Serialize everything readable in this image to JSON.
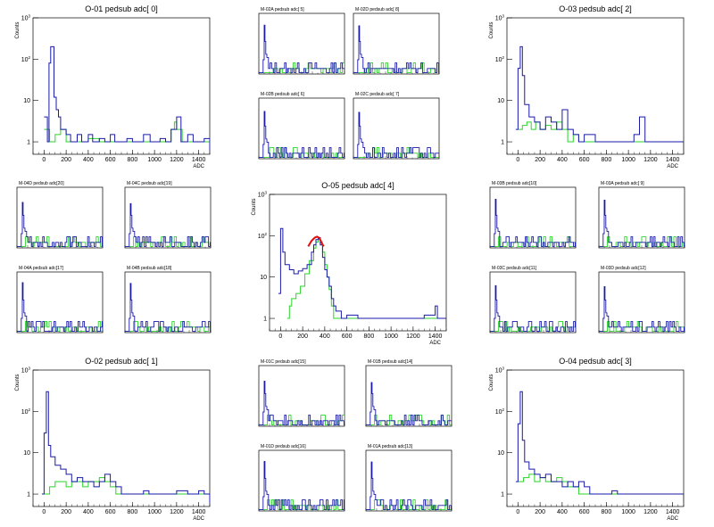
{
  "colors": {
    "blue": "#1a1aa8",
    "green": "#2ad42a",
    "red": "#e01010",
    "frame": "#000000"
  },
  "axis": {
    "xticks": [
      "0",
      "200",
      "400",
      "600",
      "800",
      "1000",
      "1200",
      "1400"
    ],
    "yticks": [
      "1",
      "10",
      "10",
      "10"
    ],
    "ysup": [
      "",
      "",
      "2",
      "3"
    ],
    "xlabel": "ADC",
    "ylabel": "Counts"
  },
  "big_panels": [
    {
      "title": "O-01    pedsub adc[ 0]",
      "blue": [
        [
          0,
          4
        ],
        [
          30,
          1
        ],
        [
          45,
          80
        ],
        [
          60,
          200
        ],
        [
          90,
          12
        ],
        [
          110,
          6
        ],
        [
          130,
          4
        ],
        [
          150,
          2
        ],
        [
          200,
          1.5
        ],
        [
          240,
          1
        ],
        [
          300,
          1.5
        ],
        [
          340,
          1
        ],
        [
          400,
          1.5
        ],
        [
          440,
          1
        ],
        [
          500,
          1.2
        ],
        [
          550,
          1
        ],
        [
          600,
          1.5
        ],
        [
          640,
          1
        ],
        [
          700,
          1
        ],
        [
          750,
          1.2
        ],
        [
          800,
          1
        ],
        [
          850,
          1
        ],
        [
          900,
          1.5
        ],
        [
          960,
          1
        ],
        [
          1000,
          1
        ],
        [
          1050,
          1.2
        ],
        [
          1100,
          1
        ],
        [
          1150,
          2
        ],
        [
          1200,
          4
        ],
        [
          1240,
          1
        ],
        [
          1300,
          1.5
        ],
        [
          1350,
          1
        ],
        [
          1400,
          1
        ],
        [
          1450,
          1.2
        ],
        [
          1500,
          0.6
        ]
      ],
      "green": [
        [
          0,
          2
        ],
        [
          50,
          1
        ],
        [
          100,
          1.5
        ],
        [
          150,
          2
        ],
        [
          200,
          1
        ],
        [
          300,
          1
        ],
        [
          400,
          1.2
        ],
        [
          500,
          1
        ],
        [
          600,
          1
        ],
        [
          800,
          1
        ],
        [
          1000,
          1
        ],
        [
          1100,
          1
        ],
        [
          1150,
          2
        ],
        [
          1180,
          3
        ],
        [
          1200,
          2
        ],
        [
          1250,
          1
        ],
        [
          1500,
          0.6
        ]
      ]
    },
    {
      "title": "O-03    pedsub adc[ 2]",
      "blue": [
        [
          -20,
          2
        ],
        [
          0,
          60
        ],
        [
          20,
          200
        ],
        [
          40,
          40
        ],
        [
          60,
          8
        ],
        [
          100,
          4
        ],
        [
          150,
          3
        ],
        [
          200,
          2
        ],
        [
          250,
          4
        ],
        [
          300,
          3
        ],
        [
          350,
          2
        ],
        [
          400,
          6
        ],
        [
          450,
          2
        ],
        [
          500,
          1.5
        ],
        [
          550,
          1
        ],
        [
          600,
          1.5
        ],
        [
          700,
          1
        ],
        [
          800,
          1
        ],
        [
          900,
          1
        ],
        [
          1000,
          1
        ],
        [
          1050,
          1.5
        ],
        [
          1100,
          4
        ],
        [
          1150,
          1
        ],
        [
          1500,
          0.6
        ]
      ],
      "green": [
        [
          0,
          2
        ],
        [
          40,
          2.5
        ],
        [
          80,
          3
        ],
        [
          120,
          2
        ],
        [
          160,
          3
        ],
        [
          200,
          2
        ],
        [
          250,
          2.5
        ],
        [
          300,
          2
        ],
        [
          350,
          3
        ],
        [
          400,
          2
        ],
        [
          450,
          1
        ],
        [
          500,
          1.5
        ],
        [
          550,
          1
        ],
        [
          1500,
          0.6
        ]
      ]
    },
    {
      "title": "O-02    pedsub adc[ 1]",
      "blue": [
        [
          -20,
          1
        ],
        [
          0,
          30
        ],
        [
          20,
          300
        ],
        [
          40,
          15
        ],
        [
          60,
          8
        ],
        [
          100,
          5
        ],
        [
          150,
          4
        ],
        [
          200,
          3
        ],
        [
          250,
          2
        ],
        [
          300,
          2.5
        ],
        [
          350,
          2
        ],
        [
          400,
          2
        ],
        [
          450,
          1.5
        ],
        [
          500,
          2
        ],
        [
          550,
          3
        ],
        [
          600,
          2
        ],
        [
          650,
          1.5
        ],
        [
          700,
          1
        ],
        [
          750,
          1
        ],
        [
          800,
          1
        ],
        [
          900,
          1.2
        ],
        [
          950,
          1
        ],
        [
          1000,
          1
        ],
        [
          1050,
          1
        ],
        [
          1100,
          1
        ],
        [
          1200,
          1.2
        ],
        [
          1300,
          1
        ],
        [
          1400,
          1.2
        ],
        [
          1450,
          1
        ],
        [
          1500,
          0.6
        ]
      ],
      "green": [
        [
          0,
          1
        ],
        [
          50,
          1.5
        ],
        [
          100,
          2
        ],
        [
          150,
          2
        ],
        [
          200,
          1.5
        ],
        [
          250,
          2
        ],
        [
          300,
          2
        ],
        [
          350,
          1.5
        ],
        [
          400,
          2
        ],
        [
          450,
          2
        ],
        [
          500,
          2.5
        ],
        [
          550,
          2
        ],
        [
          600,
          1.5
        ],
        [
          650,
          1
        ],
        [
          700,
          1
        ],
        [
          1500,
          0.6
        ]
      ]
    },
    {
      "title": "O-04    pedsub adc[ 3]",
      "blue": [
        [
          -20,
          2
        ],
        [
          0,
          50
        ],
        [
          20,
          300
        ],
        [
          40,
          20
        ],
        [
          60,
          6
        ],
        [
          100,
          4
        ],
        [
          150,
          3
        ],
        [
          200,
          2.5
        ],
        [
          250,
          3
        ],
        [
          300,
          2
        ],
        [
          350,
          2
        ],
        [
          400,
          1.5
        ],
        [
          450,
          2
        ],
        [
          500,
          1.5
        ],
        [
          550,
          2
        ],
        [
          600,
          1.5
        ],
        [
          650,
          1
        ],
        [
          700,
          1
        ],
        [
          800,
          1
        ],
        [
          850,
          1.2
        ],
        [
          900,
          1
        ],
        [
          1000,
          1
        ],
        [
          1100,
          1
        ],
        [
          1200,
          1
        ],
        [
          1300,
          1
        ],
        [
          1400,
          1
        ],
        [
          1500,
          0.6
        ]
      ],
      "green": [
        [
          0,
          2
        ],
        [
          50,
          2.5
        ],
        [
          100,
          3
        ],
        [
          150,
          2
        ],
        [
          200,
          2.5
        ],
        [
          250,
          2
        ],
        [
          300,
          2
        ],
        [
          350,
          2.5
        ],
        [
          400,
          2
        ],
        [
          450,
          1.5
        ],
        [
          500,
          1.5
        ],
        [
          550,
          1
        ],
        [
          600,
          1
        ],
        [
          1500,
          0.6
        ]
      ]
    },
    {
      "title": "O-05    pedsub adc[ 4]",
      "blue": [
        [
          -20,
          4
        ],
        [
          0,
          150
        ],
        [
          20,
          40
        ],
        [
          40,
          20
        ],
        [
          80,
          15
        ],
        [
          120,
          12
        ],
        [
          160,
          14
        ],
        [
          200,
          16
        ],
        [
          240,
          20
        ],
        [
          280,
          40
        ],
        [
          300,
          60
        ],
        [
          320,
          80
        ],
        [
          340,
          90
        ],
        [
          360,
          60
        ],
        [
          380,
          30
        ],
        [
          400,
          15
        ],
        [
          420,
          10
        ],
        [
          440,
          6
        ],
        [
          460,
          3
        ],
        [
          480,
          2
        ],
        [
          500,
          1.5
        ],
        [
          550,
          1
        ],
        [
          600,
          1.2
        ],
        [
          700,
          1
        ],
        [
          800,
          1
        ],
        [
          900,
          1
        ],
        [
          1000,
          1
        ],
        [
          1100,
          1
        ],
        [
          1200,
          1
        ],
        [
          1300,
          1.2
        ],
        [
          1400,
          2
        ],
        [
          1420,
          1
        ],
        [
          1500,
          0.6
        ]
      ],
      "green": [
        [
          60,
          1
        ],
        [
          80,
          2
        ],
        [
          100,
          3
        ],
        [
          140,
          4
        ],
        [
          180,
          6
        ],
        [
          220,
          12
        ],
        [
          260,
          25
        ],
        [
          300,
          50
        ],
        [
          320,
          70
        ],
        [
          340,
          80
        ],
        [
          360,
          60
        ],
        [
          380,
          40
        ],
        [
          400,
          20
        ],
        [
          420,
          10
        ],
        [
          440,
          5
        ],
        [
          460,
          2
        ],
        [
          480,
          1
        ],
        [
          1500,
          0.6
        ]
      ],
      "fit": [
        [
          250,
          55
        ],
        [
          280,
          75
        ],
        [
          310,
          90
        ],
        [
          330,
          95
        ],
        [
          350,
          88
        ],
        [
          370,
          70
        ],
        [
          390,
          55
        ]
      ]
    }
  ],
  "small_panels": [
    {
      "title": "M-02A    pedsub adc[ 5]"
    },
    {
      "title": "M-02D    pedsub adc[ 8]"
    },
    {
      "title": "M-02B    pedsub adc[ 6]"
    },
    {
      "title": "M-02C    pedsub adc[ 7]"
    },
    {
      "title": "M-04D    pedsub adc[20]"
    },
    {
      "title": "M-04C    pedsub adc[19]"
    },
    {
      "title": "M-04A    pedsub adc[17]"
    },
    {
      "title": "M-04B    pedsub adc[18]"
    },
    {
      "title": "M-03B    pedsub adc[10]"
    },
    {
      "title": "M-03A    pedsub adc[ 9]"
    },
    {
      "title": "M-03C    pedsub adc[11]"
    },
    {
      "title": "M-03D    pedsub adc[12]"
    },
    {
      "title": "M-01C    pedsub adc[15]"
    },
    {
      "title": "M-01B    pedsub adc[14]"
    },
    {
      "title": "M-01D    pedsub adc[16]"
    },
    {
      "title": "M-01A    pedsub adc[13]"
    }
  ],
  "chart_data": {
    "type": "line",
    "title": "",
    "xlabel": "ADC",
    "ylabel": "Counts",
    "xlim": [
      -100,
      1500
    ],
    "ylim": [
      0.5,
      1000
    ],
    "log_y": true,
    "grid": false,
    "legend": "none"
  }
}
